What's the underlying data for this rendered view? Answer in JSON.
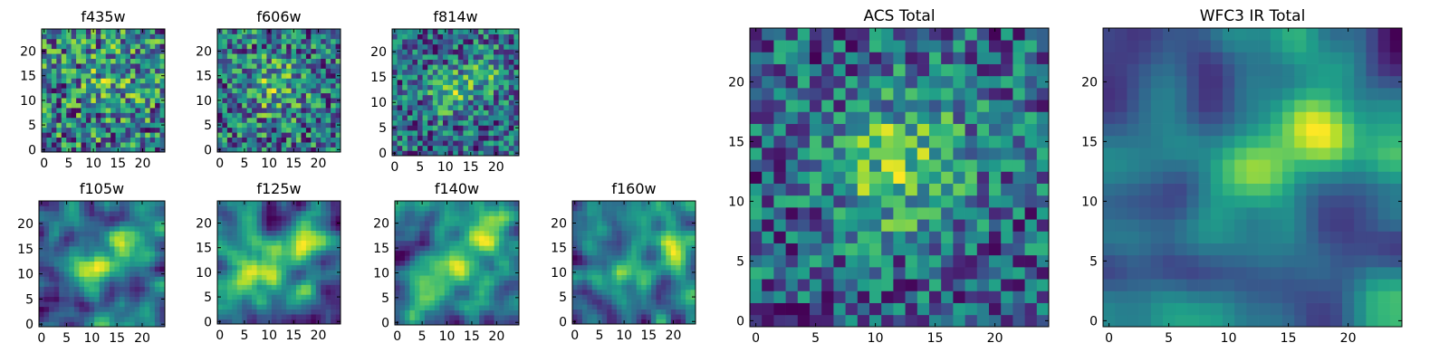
{
  "figure_title": "",
  "chart_data": [
    {
      "type": "heatmap",
      "title": "f435w",
      "grid_size": 25,
      "x_ticks": [
        0,
        5,
        10,
        15,
        20
      ],
      "y_ticks": [
        0,
        5,
        10,
        15,
        20
      ],
      "colormap": "viridis",
      "seed": 11,
      "smooth": 0,
      "centers": [
        {
          "x": 14,
          "y": 15,
          "amp": 0.25,
          "sigma": 4
        }
      ]
    },
    {
      "type": "heatmap",
      "title": "f606w",
      "grid_size": 25,
      "x_ticks": [
        0,
        5,
        10,
        15,
        20
      ],
      "y_ticks": [
        0,
        5,
        10,
        15,
        20
      ],
      "colormap": "viridis",
      "seed": 23,
      "smooth": 0,
      "centers": [
        {
          "x": 11,
          "y": 13,
          "amp": 0.35,
          "sigma": 4
        }
      ]
    },
    {
      "type": "heatmap",
      "title": "f814w",
      "grid_size": 25,
      "x_ticks": [
        0,
        5,
        10,
        15,
        20
      ],
      "y_ticks": [
        0,
        5,
        10,
        15,
        20
      ],
      "colormap": "viridis",
      "seed": 37,
      "smooth": 0,
      "centers": [
        {
          "x": 11,
          "y": 12,
          "amp": 0.5,
          "sigma": 3
        },
        {
          "x": 18,
          "y": 16,
          "amp": 0.35,
          "sigma": 3
        }
      ]
    },
    {
      "type": "heatmap",
      "title": "f105w",
      "grid_size": 25,
      "x_ticks": [
        0,
        5,
        10,
        15,
        20
      ],
      "y_ticks": [
        0,
        5,
        10,
        15,
        20
      ],
      "colormap": "viridis",
      "seed": 41,
      "smooth": 2,
      "centers": [
        {
          "x": 11,
          "y": 11,
          "amp": 0.7,
          "sigma": 3.5
        },
        {
          "x": 17,
          "y": 16,
          "amp": 0.5,
          "sigma": 3
        }
      ]
    },
    {
      "type": "heatmap",
      "title": "f125w",
      "grid_size": 25,
      "x_ticks": [
        0,
        5,
        10,
        15,
        20
      ],
      "y_ticks": [
        0,
        5,
        10,
        15,
        20
      ],
      "colormap": "viridis",
      "seed": 53,
      "smooth": 2,
      "centers": [
        {
          "x": 9,
          "y": 10,
          "amp": 0.6,
          "sigma": 3
        },
        {
          "x": 18,
          "y": 16,
          "amp": 0.6,
          "sigma": 3
        }
      ]
    },
    {
      "type": "heatmap",
      "title": "f140w",
      "grid_size": 25,
      "x_ticks": [
        0,
        5,
        10,
        15,
        20
      ],
      "y_ticks": [
        0,
        5,
        10,
        15,
        20
      ],
      "colormap": "viridis",
      "seed": 67,
      "smooth": 2,
      "centers": [
        {
          "x": 10,
          "y": 11,
          "amp": 0.6,
          "sigma": 3
        },
        {
          "x": 18,
          "y": 17,
          "amp": 0.7,
          "sigma": 3
        },
        {
          "x": 3,
          "y": 1,
          "amp": 0.6,
          "sigma": 1.5
        }
      ]
    },
    {
      "type": "heatmap",
      "title": "f160w",
      "grid_size": 25,
      "x_ticks": [
        0,
        5,
        10,
        15,
        20
      ],
      "y_ticks": [
        0,
        5,
        10,
        15,
        20
      ],
      "colormap": "viridis",
      "seed": 79,
      "smooth": 2,
      "centers": [
        {
          "x": 10,
          "y": 10,
          "amp": 0.5,
          "sigma": 3
        },
        {
          "x": 19,
          "y": 15,
          "amp": 0.7,
          "sigma": 2.5
        }
      ]
    },
    {
      "type": "heatmap",
      "title": "ACS Total",
      "grid_size": 25,
      "x_ticks": [
        0,
        5,
        10,
        15,
        20
      ],
      "y_ticks": [
        0,
        5,
        10,
        15,
        20
      ],
      "colormap": "viridis",
      "seed": 97,
      "smooth": 0,
      "centers": [
        {
          "x": 11,
          "y": 12,
          "amp": 0.5,
          "sigma": 3.5
        },
        {
          "x": 14,
          "y": 16,
          "amp": 0.3,
          "sigma": 4
        }
      ]
    },
    {
      "type": "heatmap",
      "title": "WFC3 IR Total",
      "grid_size": 25,
      "x_ticks": [
        0,
        5,
        10,
        15,
        20
      ],
      "y_ticks": [
        0,
        5,
        10,
        15,
        20
      ],
      "colormap": "viridis",
      "seed": 103,
      "smooth": 3,
      "centers": [
        {
          "x": 11,
          "y": 12,
          "amp": 0.7,
          "sigma": 3.5
        },
        {
          "x": 18,
          "y": 16,
          "amp": 0.8,
          "sigma": 3
        }
      ]
    }
  ]
}
